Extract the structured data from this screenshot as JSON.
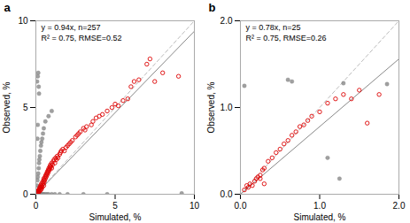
{
  "chart_data": [
    {
      "type": "scatter",
      "title": "a",
      "annotations": [
        "y = 0.94x, n=257",
        "R² = 0.75, RMSE=0.52"
      ],
      "xlabel": "Simulated, %",
      "ylabel": "Observed, %",
      "xlim": [
        0,
        10
      ],
      "ylim": [
        0,
        10
      ],
      "xticks": [
        0,
        5,
        10
      ],
      "yticks": [
        0,
        5,
        10
      ],
      "series": [
        {
          "type": "line",
          "line_style": "dashed",
          "color": "#bbbbbb",
          "x": [
            0,
            10
          ],
          "values": [
            0,
            10
          ]
        },
        {
          "type": "line",
          "line_style": "solid",
          "color": "#888888",
          "x": [
            0,
            10
          ],
          "values": [
            0,
            9.4
          ]
        },
        {
          "type": "scatter",
          "marker": "circle",
          "color": "#888888",
          "x": [
            0.05,
            0.08,
            0.1,
            0.12,
            0.15,
            0.18,
            0.2,
            0.22,
            0.25,
            0.28,
            0.3,
            0.35,
            0.4,
            0.45,
            0.5,
            0.6,
            0.7,
            0.8,
            1.0,
            1.2,
            1.5,
            2.0,
            3.0,
            4.5,
            9.2,
            0.08,
            0.1,
            0.12,
            0.15,
            0.18,
            0.2,
            0.22,
            0.25,
            0.28,
            0.32,
            0.35,
            0.4,
            0.45,
            0.5,
            0.6,
            0.8,
            1.0
          ],
          "values": [
            0.02,
            0.0,
            0.0,
            0.0,
            0.0,
            0.05,
            0.0,
            0.0,
            0.0,
            0.0,
            0.0,
            0.0,
            0.0,
            0.0,
            0.0,
            0.0,
            0.0,
            0.0,
            0.0,
            0.0,
            0.0,
            0.0,
            0.0,
            0.0,
            0.05,
            0.5,
            0.8,
            1.0,
            1.2,
            1.5,
            1.8,
            2.0,
            2.2,
            2.5,
            2.8,
            3.0,
            3.2,
            3.5,
            3.8,
            4.2,
            4.5,
            4.8
          ]
        },
        {
          "type": "scatter",
          "marker": "circle",
          "color": "#888888",
          "x": [
            0.08,
            0.12,
            0.15,
            0.18,
            0.2,
            0.1,
            0.12
          ],
          "values": [
            6.5,
            6.8,
            7.0,
            6.2,
            5.8,
            3.2,
            4.0
          ]
        },
        {
          "type": "scatter",
          "marker": "open_circle",
          "color": "#dd0000",
          "x": [
            0.05,
            0.07,
            0.1,
            0.12,
            0.15,
            0.15,
            0.18,
            0.2,
            0.22,
            0.25,
            0.25,
            0.28,
            0.3,
            0.3,
            0.32,
            0.35,
            0.35,
            0.38,
            0.4,
            0.42,
            0.45,
            0.48,
            0.5,
            0.5,
            0.52,
            0.55,
            0.58,
            0.6,
            0.62,
            0.65,
            0.68,
            0.7,
            0.72,
            0.75,
            0.78,
            0.8,
            0.82,
            0.85,
            0.88,
            0.9,
            0.92,
            0.95,
            1.0,
            1.0,
            1.05,
            1.1,
            1.15,
            1.2,
            1.25,
            1.3,
            1.35,
            1.4,
            1.5,
            1.55,
            1.6,
            1.7,
            1.8,
            1.9,
            2.0,
            2.1,
            2.2,
            2.3,
            2.5,
            2.6,
            2.7,
            2.8,
            3.0,
            3.1,
            3.2,
            3.5,
            3.6,
            3.8,
            4.0,
            4.2,
            4.5,
            4.8,
            5.0,
            5.2,
            5.5,
            5.8,
            6.0,
            6.2,
            6.5,
            7.0,
            7.2,
            7.5,
            8.0,
            9.0
          ],
          "values": [
            0.05,
            0.1,
            0.08,
            0.15,
            0.1,
            0.2,
            0.25,
            0.15,
            0.3,
            0.2,
            0.4,
            0.35,
            0.25,
            0.5,
            0.4,
            0.3,
            0.6,
            0.5,
            0.4,
            0.7,
            0.6,
            0.8,
            0.5,
            0.9,
            0.7,
            0.8,
            1.0,
            0.9,
            1.1,
            1.0,
            1.2,
            1.1,
            1.3,
            1.2,
            1.4,
            1.3,
            1.5,
            1.4,
            1.6,
            1.5,
            1.7,
            1.6,
            1.5,
            1.8,
            1.7,
            1.9,
            2.0,
            1.8,
            2.1,
            2.0,
            2.2,
            2.1,
            2.3,
            2.4,
            2.5,
            2.6,
            2.5,
            2.7,
            2.8,
            2.9,
            3.0,
            3.1,
            3.3,
            3.4,
            3.5,
            3.6,
            3.8,
            3.7,
            3.9,
            4.0,
            4.2,
            4.4,
            4.5,
            4.6,
            4.8,
            5.0,
            5.2,
            5.1,
            5.4,
            5.5,
            6.2,
            6.5,
            6.6,
            7.5,
            7.8,
            6.5,
            7.0,
            6.8
          ]
        }
      ]
    },
    {
      "type": "scatter",
      "title": "b",
      "annotations": [
        "y = 0.78x, n=25",
        "R² = 0.75, RMSE=0.26"
      ],
      "xlabel": "Simulated, %",
      "ylabel": "Observed, %",
      "xlim": [
        0,
        2
      ],
      "ylim": [
        0,
        2
      ],
      "xticks": [
        0,
        1,
        2
      ],
      "yticks": [
        0,
        1,
        2
      ],
      "series": [
        {
          "type": "line",
          "line_style": "dashed",
          "color": "#bbbbbb",
          "x": [
            0,
            2
          ],
          "values": [
            0,
            2
          ]
        },
        {
          "type": "line",
          "line_style": "solid",
          "color": "#888888",
          "x": [
            0,
            2
          ],
          "values": [
            0,
            1.56
          ]
        },
        {
          "type": "scatter",
          "marker": "circle",
          "color": "#888888",
          "x": [
            0.05,
            0.6,
            0.65,
            1.3,
            1.85,
            1.1,
            1.25
          ],
          "values": [
            1.25,
            1.32,
            1.3,
            1.28,
            1.27,
            0.42,
            0.18
          ]
        },
        {
          "type": "scatter",
          "marker": "open_circle",
          "color": "#dd0000",
          "x": [
            0.05,
            0.08,
            0.1,
            0.12,
            0.15,
            0.18,
            0.2,
            0.22,
            0.25,
            0.28,
            0.3,
            0.35,
            0.4,
            0.45,
            0.5,
            0.55,
            0.6,
            0.65,
            0.7,
            0.75,
            0.8,
            0.85,
            0.9,
            1.0,
            1.1,
            1.2,
            1.3,
            1.4,
            1.5,
            1.6,
            1.75,
            0.25,
            0.3
          ],
          "values": [
            0.05,
            0.1,
            0.08,
            0.12,
            0.1,
            0.15,
            0.18,
            0.2,
            0.22,
            0.28,
            0.3,
            0.38,
            0.42,
            0.48,
            0.52,
            0.58,
            0.62,
            0.68,
            0.72,
            0.78,
            0.8,
            0.85,
            0.9,
            0.95,
            1.05,
            1.1,
            1.15,
            1.1,
            1.2,
            0.82,
            1.15,
            0.18,
            0.12
          ]
        }
      ]
    }
  ]
}
